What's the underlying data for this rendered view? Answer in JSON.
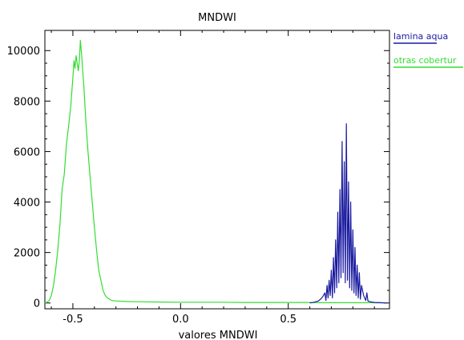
{
  "chart_data": {
    "type": "line",
    "title": "MNDWI",
    "xlabel": "valores MNDWI",
    "ylabel": "",
    "xlim": [
      -0.63,
      0.97
    ],
    "ylim": [
      -230,
      10800
    ],
    "xticks": [
      {
        "value": -0.5,
        "label": "-0.5"
      },
      {
        "value": 0.0,
        "label": "0.0"
      },
      {
        "value": 0.5,
        "label": "0.5"
      }
    ],
    "yticks": [
      {
        "value": 0,
        "label": "0"
      },
      {
        "value": 2000,
        "label": "2000"
      },
      {
        "value": 4000,
        "label": "4000"
      },
      {
        "value": 6000,
        "label": "6000"
      },
      {
        "value": 8000,
        "label": "8000"
      },
      {
        "value": 10000,
        "label": "10000"
      }
    ],
    "grid": false,
    "legend_position": "right",
    "series": [
      {
        "name": "lamina aqua",
        "color": "#1a1aa0",
        "x": [
          0.6,
          0.62,
          0.64,
          0.65,
          0.66,
          0.67,
          0.675,
          0.68,
          0.685,
          0.69,
          0.695,
          0.7,
          0.705,
          0.71,
          0.715,
          0.72,
          0.725,
          0.73,
          0.735,
          0.74,
          0.745,
          0.75,
          0.755,
          0.76,
          0.765,
          0.77,
          0.775,
          0.78,
          0.785,
          0.79,
          0.795,
          0.8,
          0.805,
          0.81,
          0.815,
          0.82,
          0.825,
          0.83,
          0.835,
          0.84,
          0.85,
          0.86,
          0.865,
          0.87,
          0.88,
          0.9,
          0.93,
          0.96
        ],
        "y": [
          0,
          30,
          80,
          150,
          250,
          400,
          100,
          700,
          200,
          900,
          300,
          1300,
          200,
          1800,
          400,
          2500,
          600,
          3600,
          800,
          4500,
          1000,
          6400,
          1200,
          5600,
          800,
          7100,
          900,
          4800,
          600,
          4000,
          500,
          2900,
          400,
          2200,
          300,
          1500,
          200,
          1200,
          150,
          700,
          300,
          100,
          400,
          80,
          50,
          20,
          10,
          0
        ]
      },
      {
        "name": "otras cobertur",
        "color": "#33dd33",
        "x": [
          -0.63,
          -0.62,
          -0.61,
          -0.6,
          -0.59,
          -0.58,
          -0.57,
          -0.56,
          -0.55,
          -0.54,
          -0.53,
          -0.52,
          -0.51,
          -0.5,
          -0.495,
          -0.49,
          -0.485,
          -0.48,
          -0.475,
          -0.47,
          -0.465,
          -0.46,
          -0.455,
          -0.45,
          -0.445,
          -0.44,
          -0.43,
          -0.42,
          -0.41,
          -0.4,
          -0.39,
          -0.38,
          -0.37,
          -0.36,
          -0.35,
          -0.34,
          -0.33,
          -0.32,
          -0.3,
          -0.25,
          -0.2,
          -0.1,
          0.0,
          0.1,
          0.2,
          0.3,
          0.4,
          0.5,
          0.55,
          0.6,
          0.65,
          0.7,
          0.75,
          0.8,
          0.85,
          0.9,
          0.95
        ],
        "y": [
          0,
          30,
          100,
          300,
          700,
          1300,
          2100,
          3100,
          4500,
          5100,
          6300,
          7000,
          7800,
          8900,
          9600,
          9300,
          9800,
          9500,
          9200,
          9600,
          10400,
          9900,
          9300,
          8700,
          8000,
          7200,
          6000,
          5000,
          4000,
          3000,
          2100,
          1300,
          900,
          500,
          300,
          200,
          150,
          100,
          80,
          60,
          50,
          40,
          30,
          30,
          30,
          20,
          20,
          20,
          20,
          20,
          10,
          10,
          10,
          10,
          10,
          10,
          0
        ]
      }
    ]
  }
}
